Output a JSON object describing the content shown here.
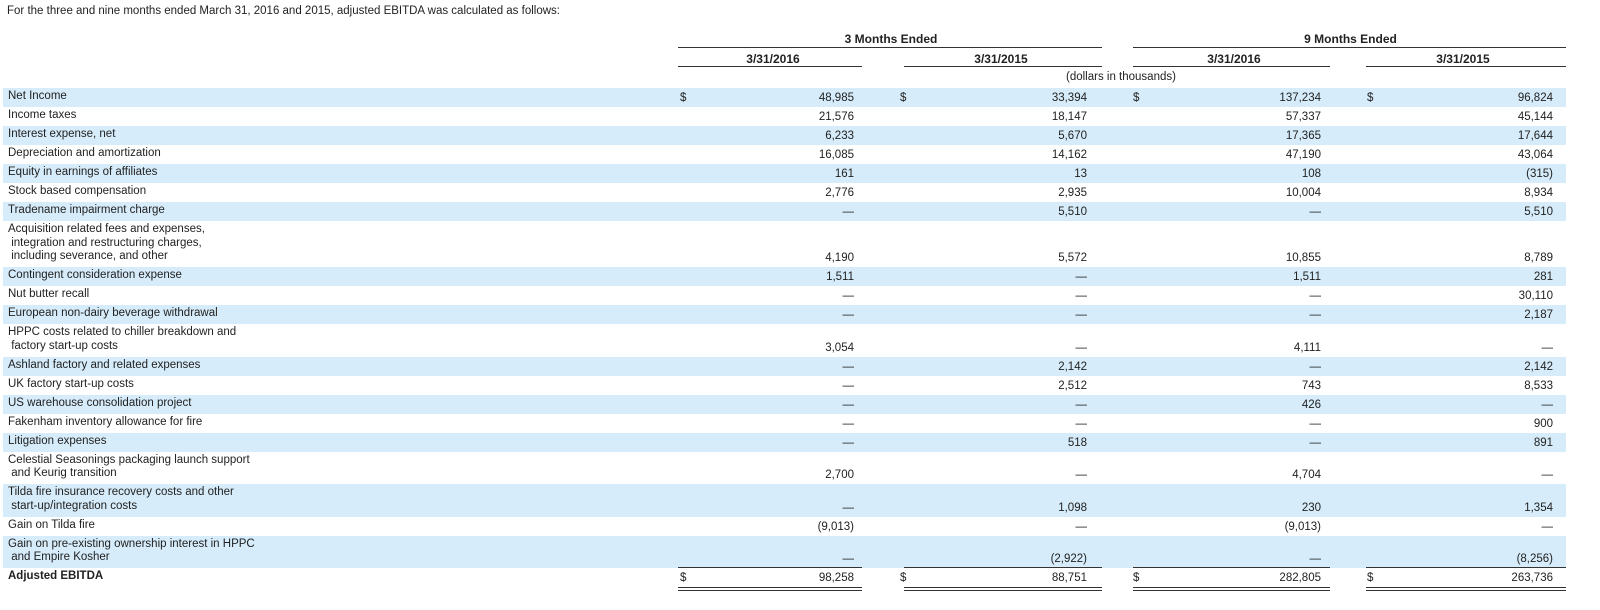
{
  "intro": "For the three and nine months ended March 31, 2016 and 2015, adjusted EBITDA was calculated as follows:",
  "header": {
    "groups": [
      "3 Months Ended",
      "9 Months Ended"
    ],
    "columns": [
      "3/31/2016",
      "3/31/2015",
      "3/31/2016",
      "3/31/2015"
    ],
    "units": "(dollars in thousands)"
  },
  "currency_symbol": "$",
  "colors": {
    "shade": "#d6ecfa",
    "text": "#222222",
    "rule": "#333333"
  },
  "rows": [
    {
      "label": "Net Income",
      "values": [
        "48,985",
        "33,394",
        "137,234",
        "96,824"
      ],
      "dollar": true,
      "shade": true
    },
    {
      "label": "Income taxes",
      "values": [
        "21,576",
        "18,147",
        "57,337",
        "45,144"
      ],
      "shade": false
    },
    {
      "label": "Interest expense, net",
      "values": [
        "6,233",
        "5,670",
        "17,365",
        "17,644"
      ],
      "shade": true
    },
    {
      "label": "Depreciation and amortization",
      "values": [
        "16,085",
        "14,162",
        "47,190",
        "43,064"
      ],
      "shade": false
    },
    {
      "label": "Equity in earnings of affiliates",
      "values": [
        "161",
        "13",
        "108",
        "(315)"
      ],
      "shade": true
    },
    {
      "label": "Stock based compensation",
      "values": [
        "2,776",
        "2,935",
        "10,004",
        "8,934"
      ],
      "shade": false
    },
    {
      "label": "Tradename impairment charge",
      "values": [
        "—",
        "5,510",
        "—",
        "5,510"
      ],
      "shade": true
    },
    {
      "label": "Acquisition related fees and expenses,\n integration and restructuring charges,\n including severance, and other",
      "values": [
        "4,190",
        "5,572",
        "10,855",
        "8,789"
      ],
      "shade": false
    },
    {
      "label": "Contingent consideration expense",
      "values": [
        "1,511",
        "—",
        "1,511",
        "281"
      ],
      "shade": true
    },
    {
      "label": "Nut butter recall",
      "values": [
        "—",
        "—",
        "—",
        "30,110"
      ],
      "shade": false
    },
    {
      "label": "European non-dairy beverage withdrawal",
      "values": [
        "—",
        "—",
        "—",
        "2,187"
      ],
      "shade": true
    },
    {
      "label": "HPPC costs related to chiller breakdown and\n factory start-up costs",
      "values": [
        "3,054",
        "—",
        "4,111",
        "—"
      ],
      "shade": false
    },
    {
      "label": "Ashland factory and related expenses",
      "values": [
        "—",
        "2,142",
        "—",
        "2,142"
      ],
      "shade": true
    },
    {
      "label": "UK factory start-up costs",
      "values": [
        "—",
        "2,512",
        "743",
        "8,533"
      ],
      "shade": false
    },
    {
      "label": "US warehouse consolidation project",
      "values": [
        "—",
        "—",
        "426",
        "—"
      ],
      "shade": true
    },
    {
      "label": "Fakenham inventory allowance for fire",
      "values": [
        "—",
        "—",
        "—",
        "900"
      ],
      "shade": false
    },
    {
      "label": "Litigation expenses",
      "values": [
        "—",
        "518",
        "—",
        "891"
      ],
      "shade": true
    },
    {
      "label": "Celestial Seasonings packaging launch support\n and Keurig transition",
      "values": [
        "2,700",
        "—",
        "4,704",
        "—"
      ],
      "shade": false
    },
    {
      "label": "Tilda fire insurance recovery costs and other\n start-up/integration costs",
      "values": [
        "—",
        "1,098",
        "230",
        "1,354"
      ],
      "shade": true
    },
    {
      "label": "Gain on Tilda fire",
      "values": [
        "(9,013)",
        "—",
        "(9,013)",
        "—"
      ],
      "shade": false
    },
    {
      "label": "Gain on pre-existing ownership interest in HPPC\n and Empire Kosher",
      "values": [
        "—",
        "(2,922)",
        "—",
        "(8,256)"
      ],
      "shade": true
    },
    {
      "label": "Adjusted EBITDA",
      "values": [
        "98,258",
        "88,751",
        "282,805",
        "263,736"
      ],
      "dollar": true,
      "shade": false,
      "total": true
    }
  ]
}
